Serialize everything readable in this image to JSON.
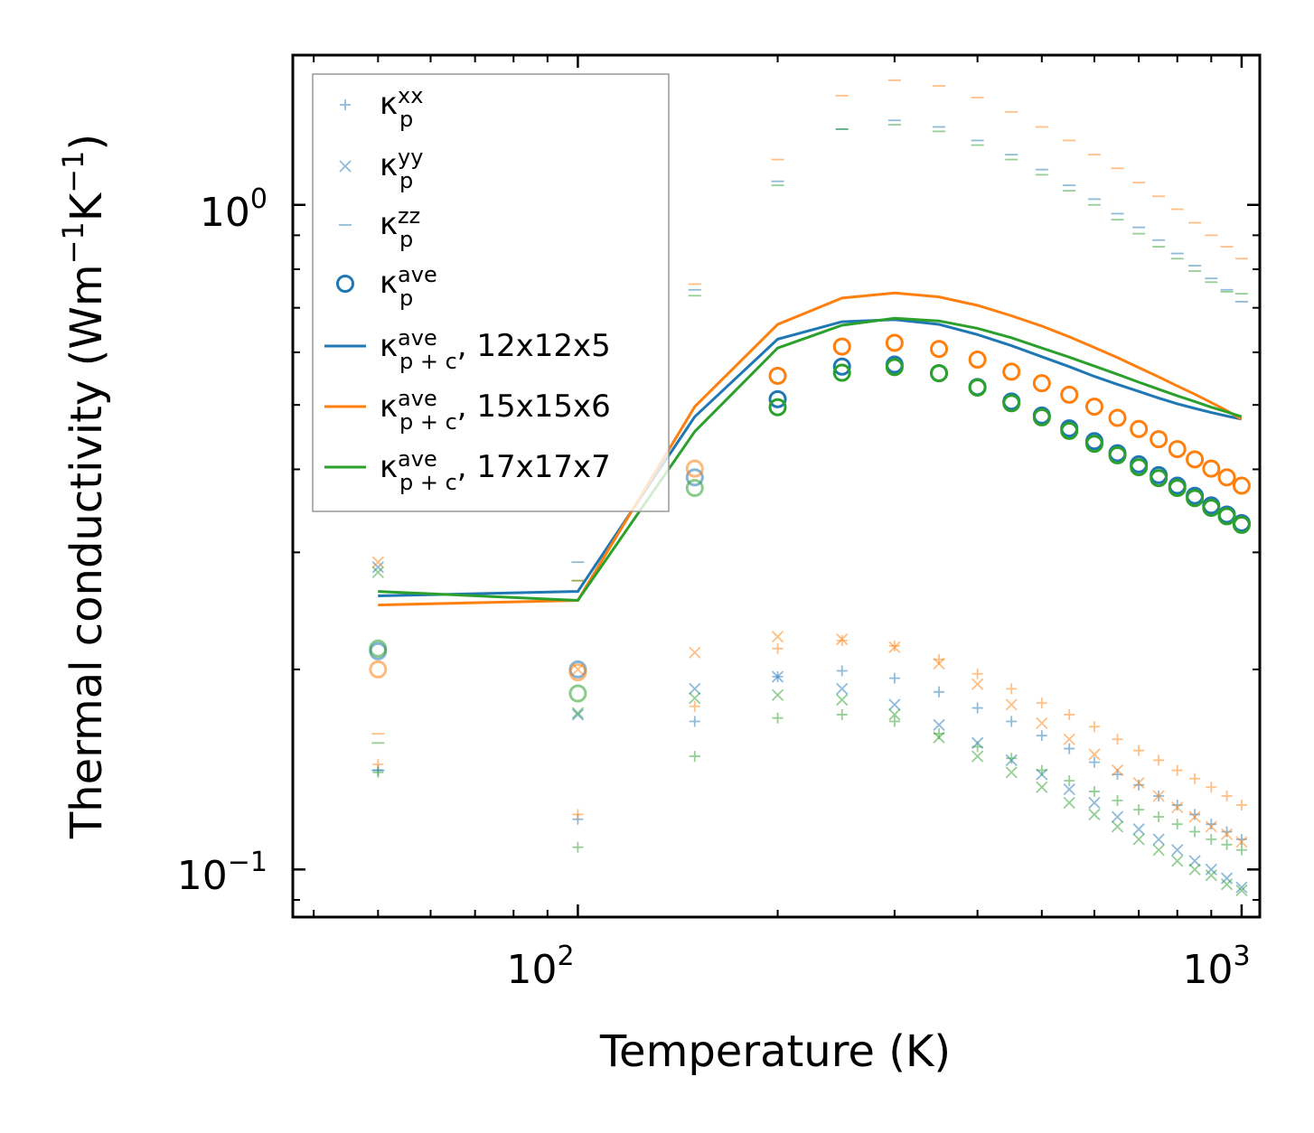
{
  "chart_data": {
    "type": "line",
    "title": "",
    "xlabel": "Temperature (K)",
    "ylabel": {
      "main": "Thermal conductivity (Wm",
      "sup1": "−1",
      "mid": "K",
      "sup2": "−1",
      "end": ")"
    },
    "xscale": "log",
    "yscale": "log",
    "xlim": [
      37.2,
      1065
    ],
    "ylim": [
      0.0848,
      1.68
    ],
    "x_ticks": [
      {
        "base": "10",
        "exp": "2",
        "value": 100
      },
      {
        "base": "10",
        "exp": "3",
        "value": 1000
      }
    ],
    "y_ticks": [
      {
        "base": "10",
        "exp": "−1",
        "value": 0.1
      },
      {
        "base": "10",
        "exp": "0",
        "value": 1.0
      }
    ],
    "legend_position": "upper-left",
    "legend": [
      {
        "base": "κ",
        "sup": "xx",
        "sub": "p",
        "suffix": "",
        "marker": "+",
        "color": "#1f77b4"
      },
      {
        "base": "κ",
        "sup": "yy",
        "sub": "p",
        "suffix": "",
        "marker": "x",
        "color": "#1f77b4"
      },
      {
        "base": "κ",
        "sup": "zz",
        "sub": "p",
        "suffix": "",
        "marker": "_",
        "color": "#1f77b4"
      },
      {
        "base": "κ",
        "sup": "ave",
        "sub": "p",
        "suffix": "",
        "marker": "o",
        "color": "#1f77b4"
      },
      {
        "base": "κ",
        "sup": "ave",
        "sub": "p + c",
        "suffix": ", 12x12x5",
        "marker": "line",
        "color": "#1f77b4"
      },
      {
        "base": "κ",
        "sup": "ave",
        "sub": "p + c",
        "suffix": ", 15x15x6",
        "marker": "line",
        "color": "#ff7f0e"
      },
      {
        "base": "κ",
        "sup": "ave",
        "sub": "p + c",
        "suffix": ", 17x17x7",
        "marker": "line",
        "color": "#2ca02c"
      }
    ],
    "x": [
      50,
      100,
      150,
      200,
      250,
      300,
      350,
      400,
      450,
      500,
      550,
      600,
      650,
      700,
      750,
      800,
      850,
      900,
      950,
      1000
    ],
    "series": [
      {
        "name": "12x12x5",
        "color": "#1f77b4",
        "kxx": [
          0.141,
          0.119,
          0.167,
          0.195,
          0.199,
          0.194,
          0.185,
          0.175,
          0.167,
          0.159,
          0.152,
          0.145,
          0.139,
          0.134,
          0.129,
          0.125,
          0.121,
          0.117,
          0.114,
          0.111
        ],
        "kyy": [
          0.285,
          0.171,
          0.187,
          0.195,
          0.187,
          0.177,
          0.165,
          0.155,
          0.146,
          0.139,
          0.132,
          0.126,
          0.12,
          0.115,
          0.111,
          0.107,
          0.103,
          0.1,
          0.097,
          0.094
        ],
        "kzz": [
          0.141,
          0.29,
          0.745,
          1.085,
          1.3,
          1.34,
          1.31,
          1.25,
          1.19,
          1.13,
          1.07,
          1.02,
          0.97,
          0.925,
          0.885,
          0.845,
          0.81,
          0.775,
          0.745,
          0.715
        ],
        "kave": [
          0.213,
          0.2,
          0.389,
          0.51,
          0.571,
          0.575,
          0.558,
          0.532,
          0.506,
          0.482,
          0.461,
          0.441,
          0.423,
          0.407,
          0.392,
          0.378,
          0.365,
          0.353,
          0.342,
          0.332
        ],
        "kpc": [
          0.258,
          0.262,
          0.48,
          0.628,
          0.667,
          0.672,
          0.661,
          0.638,
          0.614,
          0.591,
          0.571,
          0.552,
          0.537,
          0.524,
          0.512,
          0.502,
          0.494,
          0.487,
          0.481,
          0.476
        ]
      },
      {
        "name": "15x15x6",
        "color": "#ff7f0e",
        "kxx": [
          0.144,
          0.121,
          0.176,
          0.215,
          0.221,
          0.217,
          0.207,
          0.197,
          0.187,
          0.178,
          0.171,
          0.164,
          0.157,
          0.151,
          0.146,
          0.141,
          0.137,
          0.133,
          0.129,
          0.125
        ],
        "kyy": [
          0.29,
          0.2,
          0.212,
          0.224,
          0.222,
          0.216,
          0.204,
          0.19,
          0.177,
          0.166,
          0.157,
          0.149,
          0.141,
          0.135,
          0.129,
          0.124,
          0.12,
          0.116,
          0.113,
          0.11
        ],
        "kzz": [
          0.16,
          0.272,
          0.76,
          1.17,
          1.46,
          1.54,
          1.51,
          1.45,
          1.38,
          1.31,
          1.25,
          1.19,
          1.135,
          1.08,
          1.03,
          0.985,
          0.94,
          0.9,
          0.865,
          0.83
        ],
        "kave": [
          0.2,
          0.198,
          0.401,
          0.553,
          0.612,
          0.62,
          0.607,
          0.585,
          0.561,
          0.539,
          0.518,
          0.497,
          0.478,
          0.46,
          0.444,
          0.429,
          0.414,
          0.401,
          0.389,
          0.378
        ],
        "kpc": [
          0.25,
          0.254,
          0.497,
          0.661,
          0.724,
          0.737,
          0.727,
          0.706,
          0.681,
          0.657,
          0.633,
          0.61,
          0.589,
          0.569,
          0.551,
          0.534,
          0.519,
          0.504,
          0.49,
          0.476
        ]
      },
      {
        "name": "17x17x7",
        "color": "#2ca02c",
        "kxx": [
          0.14,
          0.108,
          0.148,
          0.169,
          0.171,
          0.167,
          0.16,
          0.153,
          0.147,
          0.141,
          0.136,
          0.131,
          0.127,
          0.123,
          0.12,
          0.117,
          0.114,
          0.111,
          0.109,
          0.107
        ],
        "kyy": [
          0.28,
          0.172,
          0.181,
          0.183,
          0.18,
          0.171,
          0.158,
          0.148,
          0.14,
          0.133,
          0.126,
          0.121,
          0.116,
          0.111,
          0.107,
          0.103,
          0.1,
          0.098,
          0.095,
          0.093
        ],
        "kzz": [
          0.155,
          0.272,
          0.73,
          1.07,
          1.3,
          1.32,
          1.29,
          1.23,
          1.17,
          1.11,
          1.05,
          1.0,
          0.95,
          0.905,
          0.865,
          0.83,
          0.795,
          0.765,
          0.74,
          0.735
        ],
        "kave": [
          0.215,
          0.184,
          0.375,
          0.496,
          0.559,
          0.57,
          0.558,
          0.531,
          0.503,
          0.479,
          0.457,
          0.437,
          0.42,
          0.403,
          0.388,
          0.375,
          0.362,
          0.35,
          0.34,
          0.33
        ],
        "kpc": [
          0.262,
          0.254,
          0.456,
          0.609,
          0.659,
          0.675,
          0.669,
          0.652,
          0.631,
          0.609,
          0.59,
          0.572,
          0.556,
          0.541,
          0.528,
          0.516,
          0.506,
          0.496,
          0.488,
          0.48
        ]
      }
    ]
  }
}
